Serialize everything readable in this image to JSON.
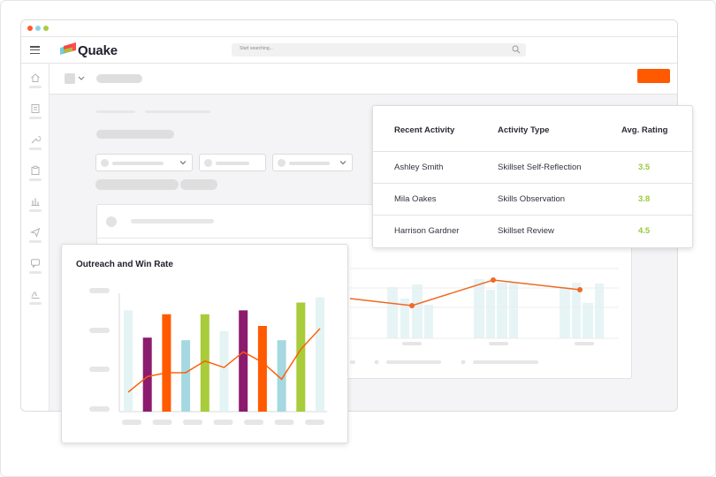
{
  "app": {
    "brand": "Quake",
    "search_placeholder": "Start searching..."
  },
  "colors": {
    "accent_orange": "#ff5a00",
    "purple": "#8c1b6f",
    "teal": "#a5d8e0",
    "lime": "#a8cc3a",
    "pale": "#e4f3f4",
    "rating_green": "#9ac93a"
  },
  "sidebar": {
    "icons": [
      "home-icon",
      "document-icon",
      "wrench-icon",
      "clipboard-icon",
      "bar-chart-icon",
      "send-icon",
      "chat-icon",
      "signature-icon"
    ]
  },
  "activity_table": {
    "headers": [
      "Recent Activity",
      "Activity Type",
      "Avg. Rating"
    ],
    "rows": [
      {
        "name": "Ashley Smith",
        "type": "Skillset Self-Reflection",
        "rating": "3.5"
      },
      {
        "name": "Mila Oakes",
        "type": "Skills Observation",
        "rating": "3.8"
      },
      {
        "name": "Harrison Gardner",
        "type": "Skillset Review",
        "rating": "4.5"
      }
    ]
  },
  "chart_data": {
    "type": "bar",
    "title": "Outreach and Win Rate",
    "xlabel": "",
    "ylabel": "",
    "bars": [
      {
        "value": 0.78,
        "color": "pale"
      },
      {
        "value": 0.57,
        "color": "purple"
      },
      {
        "value": 0.75,
        "color": "orange"
      },
      {
        "value": 0.55,
        "color": "teal"
      },
      {
        "value": 0.75,
        "color": "lime"
      },
      {
        "value": 0.62,
        "color": "pale"
      },
      {
        "value": 0.78,
        "color": "purple"
      },
      {
        "value": 0.66,
        "color": "orange"
      },
      {
        "value": 0.55,
        "color": "teal"
      },
      {
        "value": 0.84,
        "color": "lime"
      },
      {
        "value": 0.88,
        "color": "pale"
      }
    ],
    "line": [
      0.15,
      0.27,
      0.3,
      0.3,
      0.39,
      0.34,
      0.46,
      0.38,
      0.25,
      0.48,
      0.64
    ]
  }
}
